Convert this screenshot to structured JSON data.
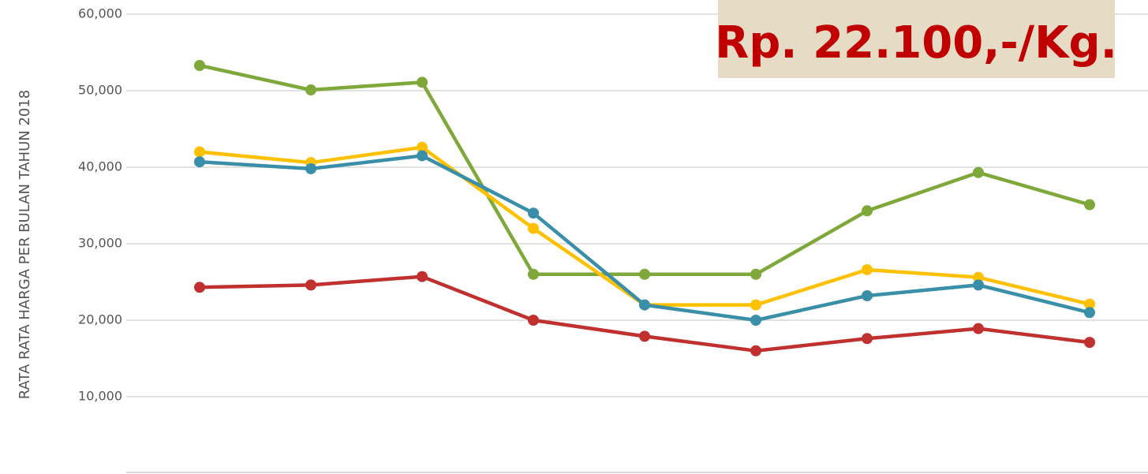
{
  "chart_data": {
    "type": "line",
    "y_label": "RATA RATA HARGA PER BULAN TAHUN 2018",
    "annotation": "Rp. 22.100,-/Kg.",
    "categories": [
      null,
      null,
      null,
      null,
      null,
      null,
      null,
      null,
      null
    ],
    "series": [
      {
        "color": "#7ea83a",
        "values": [
          53300,
          50100,
          51100,
          26000,
          26000,
          26000,
          34300,
          39300,
          35100
        ]
      },
      {
        "color": "#ffc000",
        "values": [
          42000,
          40600,
          42600,
          32000,
          22000,
          22000,
          26600,
          25600,
          22100
        ]
      },
      {
        "color": "#3a8fa8",
        "values": [
          40700,
          39800,
          41500,
          34000,
          22000,
          20000,
          23200,
          24600,
          21000
        ]
      },
      {
        "color": "#c0302f",
        "values": [
          24300,
          24600,
          25700,
          20000,
          17900,
          16000,
          17600,
          18900,
          17100
        ]
      }
    ],
    "ylim": [
      0,
      60000
    ],
    "yticks": [
      {
        "value": 10000,
        "label": "10,000"
      },
      {
        "value": 20000,
        "label": "20,000"
      },
      {
        "value": 30000,
        "label": "30,000"
      },
      {
        "value": 40000,
        "label": "40,000"
      },
      {
        "value": 50000,
        "label": "50,000"
      },
      {
        "value": 60000,
        "label": "60,000"
      }
    ],
    "grid": true
  }
}
